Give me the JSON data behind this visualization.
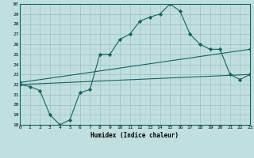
{
  "xlabel": "Humidex (Indice chaleur)",
  "bg_color": "#c0e0e0",
  "grid_color": "#b0c8c8",
  "line_color": "#1a6060",
  "ylim": [
    18,
    30
  ],
  "xlim": [
    0,
    23
  ],
  "yticks": [
    18,
    19,
    20,
    21,
    22,
    23,
    24,
    25,
    26,
    27,
    28,
    29,
    30
  ],
  "xticks": [
    0,
    1,
    2,
    3,
    4,
    5,
    6,
    7,
    8,
    9,
    10,
    11,
    12,
    13,
    14,
    15,
    16,
    17,
    18,
    19,
    20,
    21,
    22,
    23
  ],
  "curve1_x": [
    0,
    1,
    2,
    3,
    4,
    5,
    6,
    7,
    8,
    9,
    10,
    11,
    12,
    13,
    14,
    15,
    16,
    17,
    18,
    19,
    20,
    21,
    22,
    23
  ],
  "curve1_y": [
    22.0,
    21.8,
    21.4,
    19.0,
    18.0,
    18.5,
    21.2,
    21.5,
    25.0,
    25.0,
    26.5,
    27.0,
    28.3,
    28.7,
    29.0,
    30.0,
    29.3,
    27.0,
    26.0,
    25.5,
    25.5,
    23.0,
    22.5,
    23.0
  ],
  "curve2_x": [
    0,
    23
  ],
  "curve2_y": [
    22.2,
    25.5
  ],
  "curve3_x": [
    0,
    23
  ],
  "curve3_y": [
    22.0,
    23.0
  ]
}
